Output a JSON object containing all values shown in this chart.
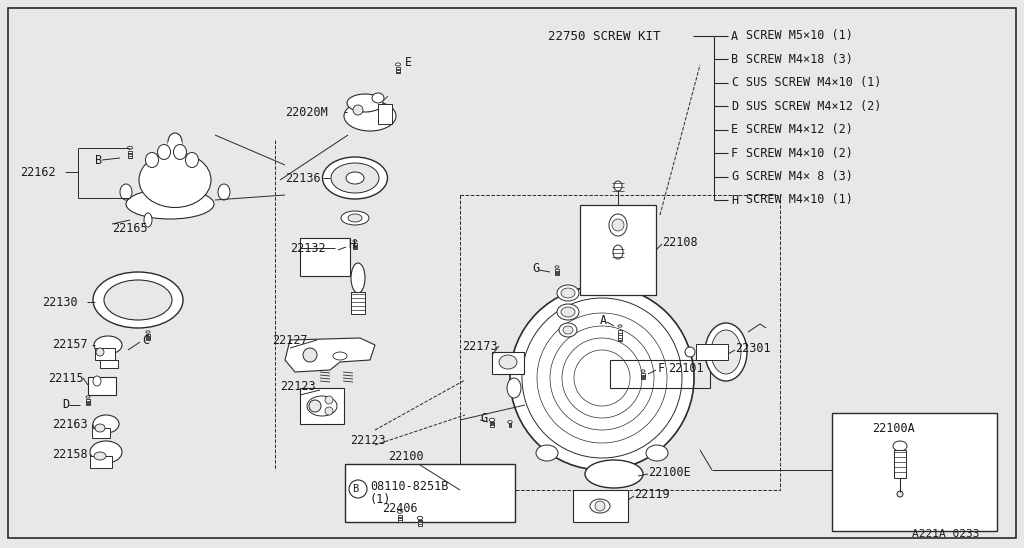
{
  "bg_color": "#e8e8e8",
  "line_color": "#2a2a2a",
  "text_color": "#1a1a1a",
  "diagram_id": "A221A 0233",
  "screw_kit_label": "22750 SCREW KIT",
  "screw_items": [
    [
      "A",
      "SCREW M5×10 (1)"
    ],
    [
      "B",
      "SCREW M4×18 (3)"
    ],
    [
      "C",
      "SUS SCREW M4×10 (1)"
    ],
    [
      "D",
      "SUS SCREW M4×12 (2)"
    ],
    [
      "E",
      "SCREW M4×12 (2)"
    ],
    [
      "F",
      "SCREW M4×10 (2)"
    ],
    [
      "G",
      "SCREW M4× 8 (3)"
    ],
    [
      "H",
      "SCREW M4×10 (1)"
    ]
  ],
  "font_size_label": 8.5,
  "font_size_screw": 8.5,
  "font_size_kit": 9.0
}
